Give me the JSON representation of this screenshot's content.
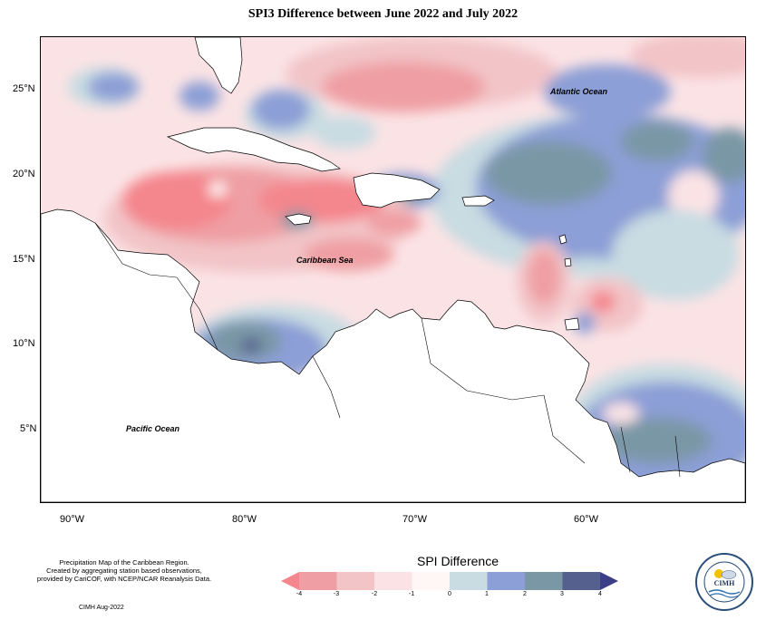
{
  "title": "SPI3 Difference between June 2022 and July 2022",
  "map": {
    "labels": {
      "atlantic": "Atlantic Ocean",
      "caribbean": "Caribbean Sea",
      "pacific": "Pacific Ocean"
    },
    "lat_ticks": [
      "25°N",
      "20°N",
      "15°N",
      "10°N",
      "5°N"
    ],
    "lon_ticks": [
      "90°W",
      "80°W",
      "70°W",
      "60°W"
    ]
  },
  "legend": {
    "title": "SPI Difference",
    "tick_labels": [
      "-4",
      "-3",
      "-2",
      "-1",
      "0",
      "1",
      "2",
      "3",
      "4"
    ],
    "colors": [
      "#f4868d",
      "#ef9fa3",
      "#f2c4c7",
      "#fbe3e5",
      "#fff6f6",
      "#c8dce2",
      "#8c9fd6",
      "#7a97a6",
      "#55608f",
      "#3c3f85"
    ]
  },
  "footnote": {
    "line1": "Precipitation Map of the Caribbean Region.",
    "line2": "Created by aggregating station based observations,",
    "line3": "provided by CariCOF, with NCEP/NCAR Reanalysis Data."
  },
  "credit": "CIMH Aug-2022",
  "logo": {
    "text": "CIMH",
    "ring_text": "Caribbean Institute for Meteorology and Hydrology"
  }
}
